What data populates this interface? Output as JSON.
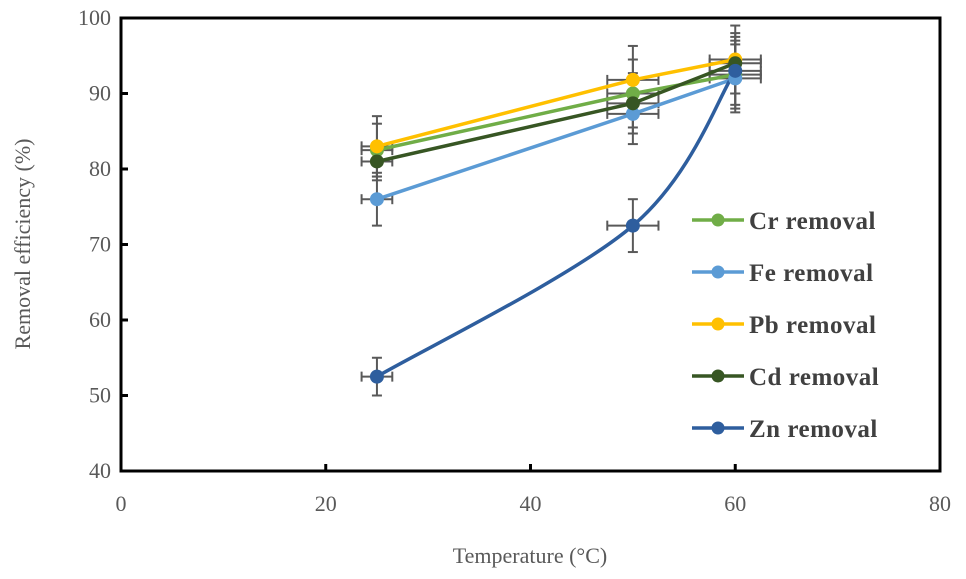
{
  "chart_data": {
    "type": "line",
    "title": "",
    "xlabel": "Temperature  (°C)",
    "ylabel": "Removal  efficiency  (%)",
    "xlim": [
      0,
      80
    ],
    "ylim": [
      40,
      100
    ],
    "xticks": [
      0,
      20,
      40,
      60,
      80
    ],
    "yticks": [
      40,
      50,
      60,
      70,
      80,
      90,
      100
    ],
    "grid": false,
    "legend_position": "right",
    "x": [
      25,
      50,
      60
    ],
    "series": [
      {
        "name": "Cr removal",
        "color": "#70ad47",
        "values": [
          82.5,
          90.0,
          92.5
        ],
        "y_err": [
          3.5,
          4.5,
          4.5
        ],
        "x_err": [
          1.5,
          2.5,
          2.5
        ],
        "smooth": false
      },
      {
        "name": "Fe removal",
        "color": "#5b9bd5",
        "values": [
          76.0,
          87.3,
          92.0
        ],
        "y_err": [
          3.5,
          4.0,
          4.5
        ],
        "x_err": [
          1.5,
          2.5,
          2.5
        ],
        "smooth": false
      },
      {
        "name": "Pb removal",
        "color": "#ffc000",
        "values": [
          83.0,
          91.8,
          94.5
        ],
        "y_err": [
          4.0,
          4.5,
          4.5
        ],
        "x_err": [
          1.5,
          2.5,
          2.5
        ],
        "smooth": false
      },
      {
        "name": "Cd removal",
        "color": "#375623",
        "values": [
          81.0,
          88.7,
          94.0
        ],
        "y_err": [
          2.5,
          4.0,
          4.0
        ],
        "x_err": [
          1.5,
          2.5,
          2.5
        ],
        "smooth": false
      },
      {
        "name": "Zn removal",
        "color": "#2e5e9e",
        "values": [
          52.5,
          72.5,
          93.0
        ],
        "y_err": [
          2.5,
          3.5,
          4.5
        ],
        "x_err": [
          1.5,
          2.5,
          2.5
        ],
        "smooth": true
      }
    ]
  }
}
